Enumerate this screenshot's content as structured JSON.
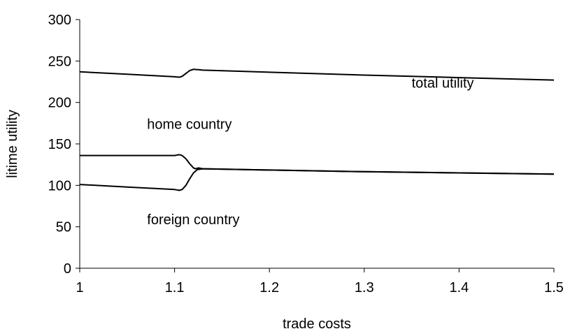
{
  "chart_data": {
    "type": "line",
    "xlabel": "trade costs",
    "ylabel": "litime utility",
    "xlim": [
      1,
      1.5
    ],
    "ylim": [
      0,
      300
    ],
    "xticks": [
      1,
      1.1,
      1.2,
      1.3,
      1.4,
      1.5
    ],
    "xtick_labels": [
      "1",
      "1.1",
      "1.2",
      "1.3",
      "1.4",
      "1.5"
    ],
    "yticks": [
      0,
      50,
      100,
      150,
      200,
      250,
      300
    ],
    "ytick_labels": [
      "0",
      "50",
      "100",
      "150",
      "200",
      "250",
      "300"
    ],
    "grid": false,
    "series": [
      {
        "x": [
          1.0,
          1.05,
          1.1,
          1.105,
          1.108,
          1.112,
          1.116,
          1.12,
          1.125,
          1.13,
          1.2,
          1.3,
          1.4,
          1.5
        ],
        "y": [
          237,
          234,
          231,
          230.5,
          231.5,
          235,
          238.5,
          240,
          239.5,
          239,
          236.5,
          233,
          230,
          227
        ]
      },
      {
        "x": [
          1.0,
          1.05,
          1.1,
          1.105,
          1.108,
          1.112,
          1.116,
          1.12,
          1.122,
          1.125,
          1.13,
          1.2,
          1.3,
          1.4,
          1.5
        ],
        "y": [
          136,
          136,
          136,
          137,
          136,
          132,
          126,
          121,
          120,
          121,
          120,
          118.5,
          116.5,
          115,
          113.5
        ]
      },
      {
        "x": [
          1.0,
          1.05,
          1.1,
          1.105,
          1.108,
          1.112,
          1.116,
          1.12,
          1.124,
          1.13,
          1.2,
          1.3,
          1.4,
          1.5
        ],
        "y": [
          101,
          98,
          95,
          94,
          95,
          100,
          108,
          115,
          119,
          120,
          118.5,
          116.5,
          115,
          113.5
        ]
      }
    ],
    "annotations": [
      {
        "text": "total utility",
        "x": 1.35,
        "y": 218
      },
      {
        "text": "home country",
        "x": 1.071,
        "y": 168
      },
      {
        "text": "foreign country",
        "x": 1.071,
        "y": 53
      }
    ]
  }
}
